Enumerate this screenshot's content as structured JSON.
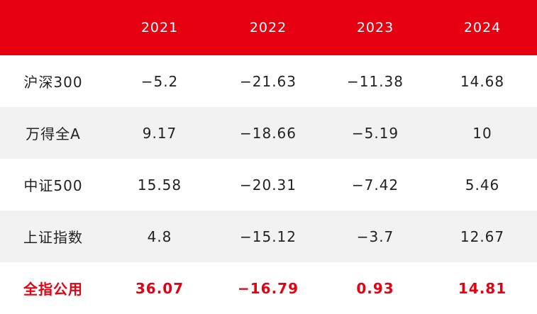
{
  "table": {
    "columns": [
      "2021",
      "2022",
      "2023",
      "2024"
    ],
    "rows": [
      [
        "沪深300",
        "−5.2",
        "−21.63",
        "−11.38",
        "14.68"
      ],
      [
        "万得全A",
        "9.17",
        "−18.66",
        "−5.19",
        "10"
      ],
      [
        "中证500",
        "15.58",
        "−20.31",
        "−7.42",
        "5.46"
      ],
      [
        "上证指数",
        "4.8",
        "−15.12",
        "−3.7",
        "12.67"
      ],
      [
        "全指公用",
        "36.07",
        "−16.79",
        "0.93",
        "14.81"
      ]
    ],
    "highlight_row": 4
  }
}
